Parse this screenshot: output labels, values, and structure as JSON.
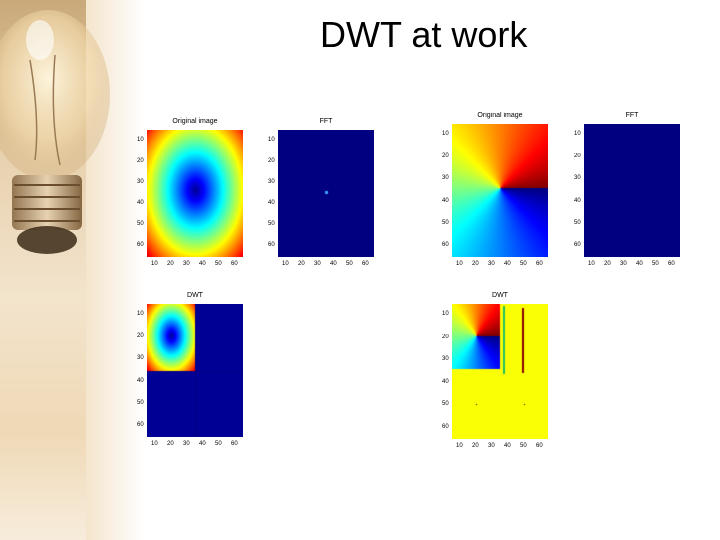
{
  "slide": {
    "title": "DWT at work"
  },
  "panels": [
    {
      "id": "original-1",
      "title": "Original image",
      "image": "radial-gradient-ellipse",
      "yticks": [
        "10",
        "20",
        "30",
        "40",
        "50",
        "60"
      ],
      "xticks": [
        "10",
        "20",
        "30",
        "40",
        "50",
        "60"
      ]
    },
    {
      "id": "fft-1",
      "title": "FFT",
      "image": "dark-blue-with-center-dot",
      "yticks": [
        "10",
        "20",
        "30",
        "40",
        "50",
        "60"
      ],
      "xticks": [
        "10",
        "20",
        "30",
        "40",
        "50",
        "60"
      ]
    },
    {
      "id": "original-2",
      "title": "Original image",
      "image": "angular-gradient",
      "yticks": [
        "10",
        "20",
        "30",
        "40",
        "50",
        "60"
      ],
      "xticks": [
        "10",
        "20",
        "30",
        "40",
        "50",
        "60"
      ]
    },
    {
      "id": "fft-2",
      "title": "FFT",
      "image": "dark-blue",
      "yticks": [
        "10",
        "20",
        "30",
        "40",
        "50",
        "60"
      ],
      "xticks": [
        "10",
        "20",
        "30",
        "40",
        "50",
        "60"
      ]
    },
    {
      "id": "dwt-1",
      "title": "DWT",
      "image": "dwt-radial",
      "yticks": [
        "10",
        "20",
        "30",
        "40",
        "50",
        "60"
      ],
      "xticks": [
        "10",
        "20",
        "30",
        "40",
        "50",
        "60"
      ]
    },
    {
      "id": "dwt-2",
      "title": "DWT",
      "image": "dwt-angular",
      "yticks": [
        "10",
        "20",
        "30",
        "40",
        "50",
        "60"
      ],
      "xticks": [
        "10",
        "20",
        "30",
        "40",
        "50",
        "60"
      ]
    }
  ],
  "colors": {
    "jet_dark_blue": "#00008f",
    "jet_light_green": "#80ff80"
  }
}
